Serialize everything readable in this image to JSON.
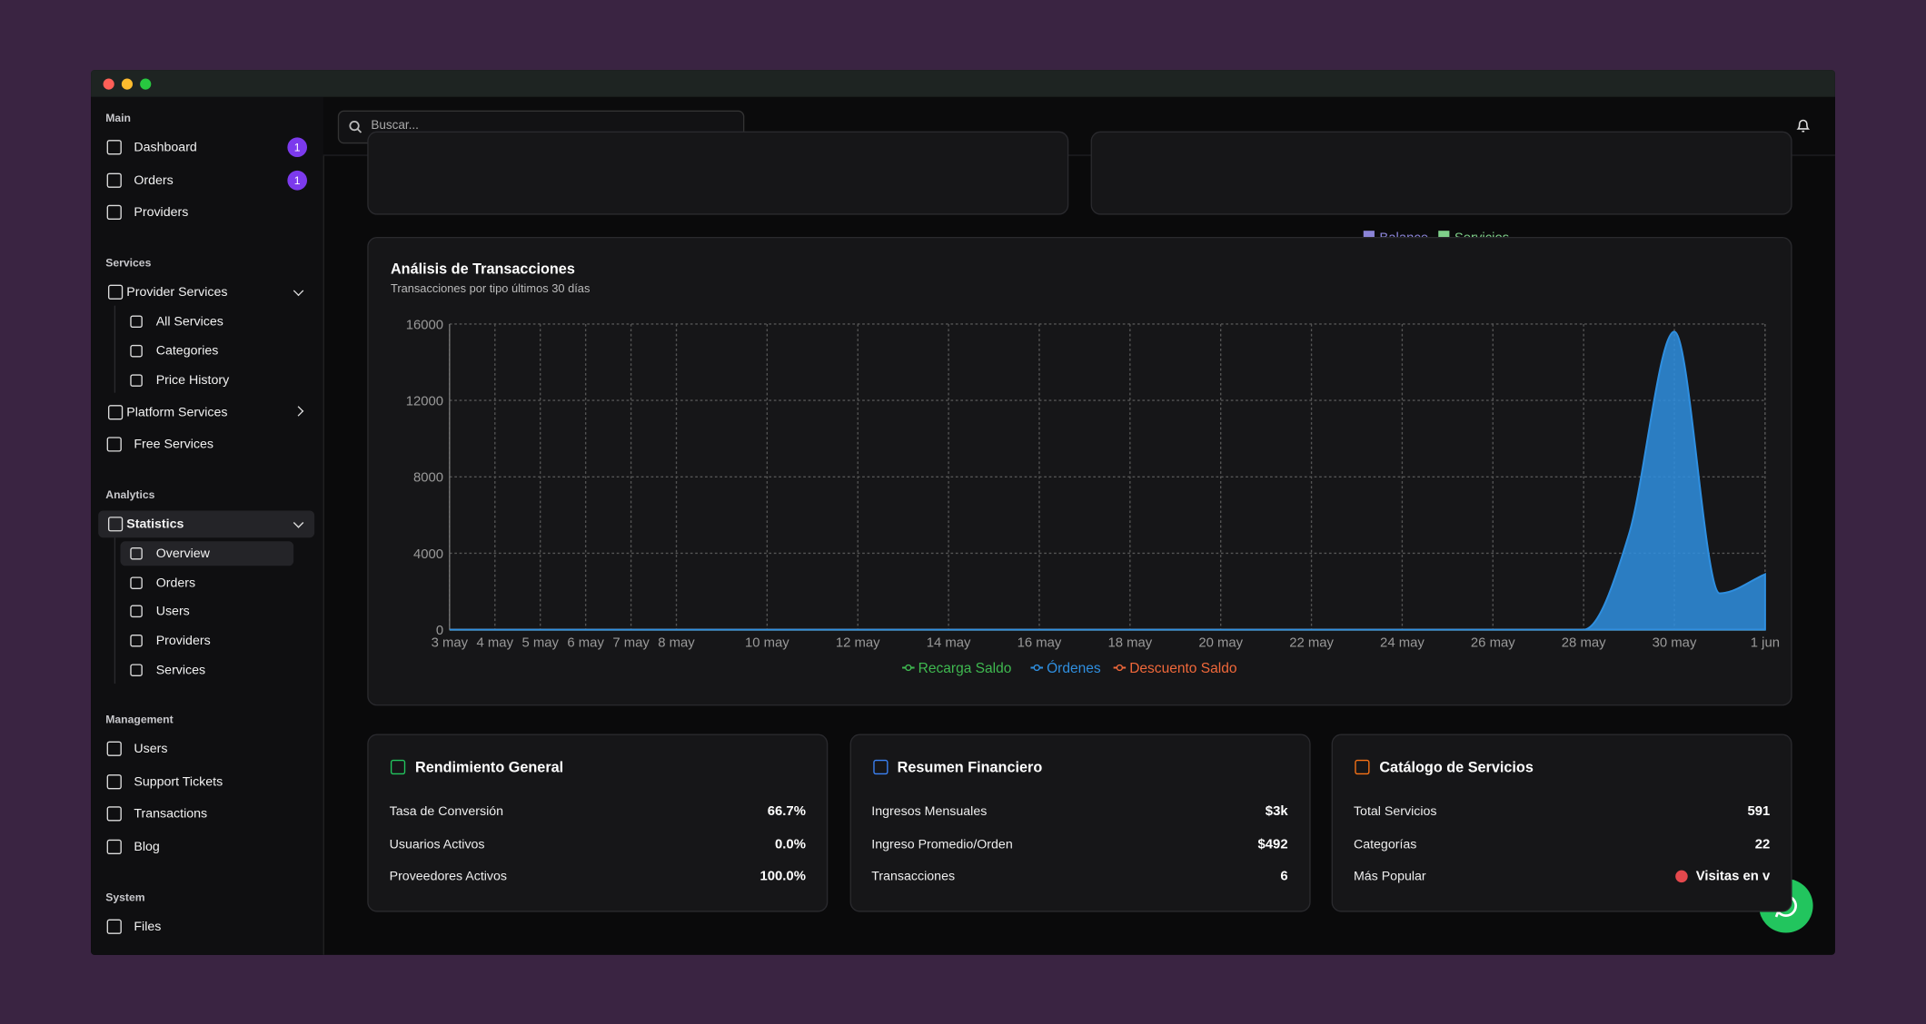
{
  "topbar": {
    "search_placeholder": "Buscar..."
  },
  "top_legend": [
    "Balance",
    "Servicios"
  ],
  "sidebar": [
    {
      "title": "Main",
      "items": [
        {
          "label": "Dashboard",
          "badge": 1
        },
        {
          "label": "Orders",
          "badge": 1
        },
        {
          "label": "Providers"
        }
      ]
    },
    {
      "title": "Services",
      "items": [
        {
          "label": "Provider Services",
          "children": [
            "All Services",
            "Categories",
            "Price History"
          ]
        },
        {
          "label": "Platform Services",
          "expandable": true
        },
        {
          "label": "Free Services"
        }
      ]
    },
    {
      "title": "Analytics",
      "items": [
        {
          "label": "Statistics",
          "active": true,
          "children": [
            "Overview",
            "Orders",
            "Users",
            "Providers",
            "Services"
          ],
          "active_child": 0
        }
      ]
    },
    {
      "title": "Management",
      "items": [
        {
          "label": "Users"
        },
        {
          "label": "Support Tickets"
        },
        {
          "label": "Transactions"
        },
        {
          "label": "Blog"
        }
      ]
    },
    {
      "title": "System",
      "items": [
        {
          "label": "Files"
        }
      ]
    }
  ],
  "chart_data": {
    "type": "area",
    "title": "Análisis de Transacciones",
    "subtitle": "Transacciones por tipo últimos 30 días",
    "categories": [
      "3 may",
      "4 may",
      "5 may",
      "6 may",
      "7 may",
      "8 may",
      null,
      "10 may",
      null,
      "12 may",
      null,
      "14 may",
      null,
      "16 may",
      null,
      "18 may",
      null,
      "20 may",
      null,
      "22 may",
      null,
      "24 may",
      null,
      "26 may",
      null,
      "28 may",
      null,
      "30 may",
      null,
      "1 jun"
    ],
    "series": [
      {
        "name": "Recarga Saldo",
        "color": "#3fb950",
        "values": [
          0,
          0,
          0,
          0,
          0,
          0,
          0,
          0,
          0,
          0,
          0,
          0,
          0,
          0,
          0,
          0,
          0,
          0,
          0,
          0,
          0,
          0,
          0,
          0,
          0,
          0,
          0,
          0,
          0,
          0
        ]
      },
      {
        "name": "Órdenes",
        "color": "#2f8fe0",
        "values": [
          0,
          0,
          0,
          0,
          0,
          0,
          0,
          0,
          0,
          0,
          0,
          0,
          0,
          0,
          0,
          0,
          0,
          0,
          0,
          0,
          0,
          0,
          0,
          0,
          0,
          0,
          5000,
          15600,
          1900,
          2900
        ]
      },
      {
        "name": "Descuento Saldo",
        "color": "#f0683a",
        "values": [
          0,
          0,
          0,
          0,
          0,
          0,
          0,
          0,
          0,
          0,
          0,
          0,
          0,
          0,
          0,
          0,
          0,
          0,
          0,
          0,
          0,
          0,
          0,
          0,
          0,
          0,
          0,
          0,
          0,
          0
        ]
      }
    ],
    "ylim": [
      0,
      16000
    ],
    "yticks": [
      0,
      4000,
      8000,
      12000,
      16000
    ],
    "grid": true
  },
  "stats_cards": [
    {
      "title": "Rendimiento General",
      "rows": [
        {
          "label": "Tasa de Conversión",
          "value": "66.7%"
        },
        {
          "label": "Usuarios Activos",
          "value": "0.0%"
        },
        {
          "label": "Proveedores Activos",
          "value": "100.0%"
        }
      ]
    },
    {
      "title": "Resumen Financiero",
      "rows": [
        {
          "label": "Ingresos Mensuales",
          "value": "$3k"
        },
        {
          "label": "Ingreso Promedio/Orden",
          "value": "$492"
        },
        {
          "label": "Transacciones",
          "value": "6"
        }
      ]
    },
    {
      "title": "Catálogo de Servicios",
      "rows": [
        {
          "label": "Total Servicios",
          "value": "591"
        },
        {
          "label": "Categorías",
          "value": "22"
        },
        {
          "label": "Más Popular",
          "value": "Visitas en v"
        }
      ]
    }
  ]
}
